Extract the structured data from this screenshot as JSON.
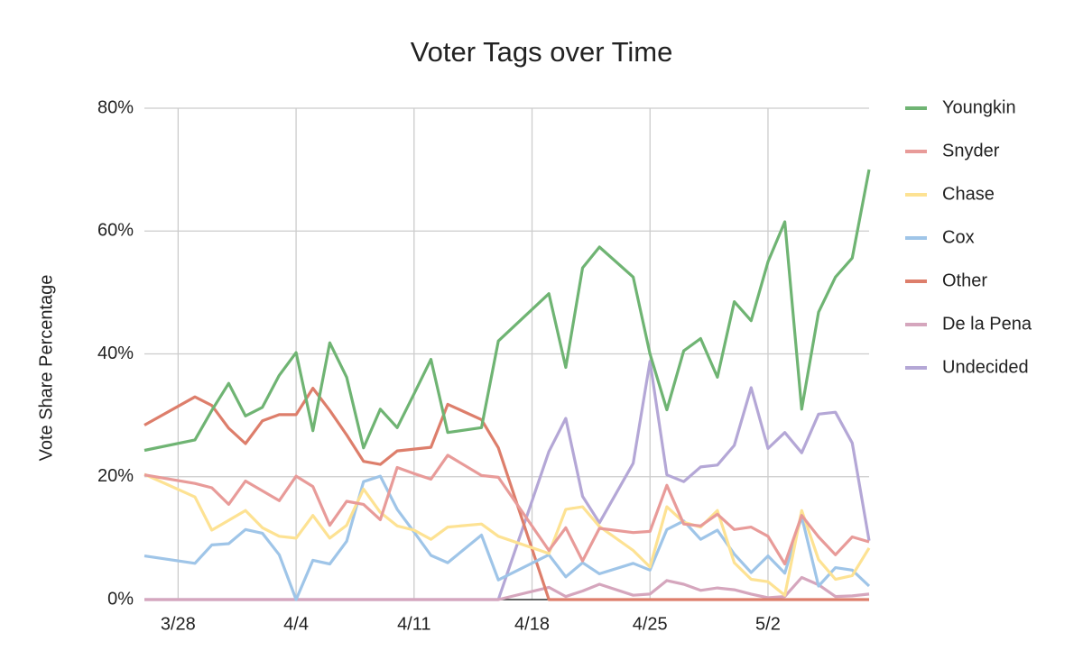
{
  "chart_data": {
    "type": "line",
    "title": "Voter Tags over Time",
    "y_label": "Vote Share Percentage",
    "x": [
      0,
      3,
      4,
      5,
      6,
      7,
      8,
      9,
      10,
      11,
      12,
      13,
      14,
      15,
      16,
      17,
      18,
      20,
      21,
      24,
      25,
      26,
      27,
      29,
      30,
      31,
      32,
      33,
      34,
      35,
      36,
      37,
      38,
      39,
      40,
      41,
      42,
      43
    ],
    "xlim": [
      0,
      43
    ],
    "xticks": [
      {
        "value": 2,
        "label": "3/28"
      },
      {
        "value": 9,
        "label": "4/4"
      },
      {
        "value": 16,
        "label": "4/11"
      },
      {
        "value": 23,
        "label": "4/18"
      },
      {
        "value": 30,
        "label": "4/25"
      },
      {
        "value": 37,
        "label": "5/2"
      }
    ],
    "ylim": [
      0,
      80
    ],
    "yticks": [
      {
        "value": 0,
        "label": "0%"
      },
      {
        "value": 20,
        "label": "20%"
      },
      {
        "value": 40,
        "label": "40%"
      },
      {
        "value": 60,
        "label": "60%"
      },
      {
        "value": 80,
        "label": "80%"
      }
    ],
    "grid": true,
    "legend": "right",
    "series": [
      {
        "name": "Youngkin",
        "color": "#6fb473",
        "values": [
          24.3,
          26,
          30.8,
          35.2,
          29.9,
          31.3,
          36.5,
          40.2,
          27.5,
          41.8,
          36.2,
          24.7,
          31,
          28,
          33.5,
          39.1,
          27.2,
          28,
          42.1,
          49.8,
          37.8,
          54,
          57.4,
          52.5,
          40,
          30.9,
          40.5,
          42.5,
          36.2,
          48.5,
          45.4,
          55,
          61.5,
          31,
          46.8,
          52.5,
          55.6,
          70
        ]
      },
      {
        "name": "Snyder",
        "color": "#e89b99",
        "values": [
          20.3,
          18.9,
          18.2,
          15.5,
          19.3,
          17.7,
          16.1,
          20.1,
          18.4,
          12.1,
          16,
          15.5,
          13,
          21.5,
          20.5,
          19.6,
          23.5,
          20.2,
          19.9,
          8,
          11.7,
          6.3,
          11.6,
          10.9,
          11.1,
          18.6,
          12.3,
          12,
          13.9,
          11.4,
          11.8,
          10.3,
          5.8,
          13.7,
          10.2,
          7.3,
          10.2,
          9.4
        ]
      },
      {
        "name": "Chase",
        "color": "#fde293",
        "values": [
          20.4,
          16.7,
          11.3,
          12.9,
          14.5,
          11.7,
          10.3,
          10,
          13.7,
          10,
          12.1,
          18,
          14.2,
          12,
          11.3,
          9.8,
          11.8,
          12.3,
          10.3,
          7.5,
          14.7,
          15.1,
          11.9,
          8,
          5.3,
          15.1,
          12.6,
          11.8,
          14.5,
          6,
          3.3,
          2.9,
          0.7,
          14.5,
          6.5,
          3.3,
          3.9,
          8.4
        ]
      },
      {
        "name": "Cox",
        "color": "#9fc5e8",
        "values": [
          7.1,
          5.9,
          8.9,
          9.1,
          11.4,
          10.8,
          7.3,
          0,
          6.4,
          5.8,
          9.5,
          19.2,
          20.1,
          14.7,
          11,
          7.2,
          6,
          10.5,
          3.2,
          7.3,
          3.7,
          6,
          4.2,
          5.9,
          4.8,
          11.4,
          12.8,
          9.8,
          11.3,
          7.4,
          4.4,
          7.1,
          4.3,
          13.5,
          2.2,
          5.2,
          4.8,
          2.2
        ]
      },
      {
        "name": "Other",
        "color": "#dd7e6b",
        "values": [
          28.4,
          33,
          31.6,
          27.9,
          25.4,
          29.1,
          30.1,
          30.1,
          34.4,
          30.8,
          26.8,
          22.5,
          22,
          24.2,
          24.5,
          24.8,
          31.8,
          29.3,
          24.7,
          0,
          0,
          0,
          0,
          0,
          0,
          0,
          0,
          0,
          0,
          0,
          0,
          0,
          0,
          0,
          0,
          0,
          0,
          0
        ]
      },
      {
        "name": "De la Pena",
        "color": "#d5a6bd",
        "values": [
          0,
          0,
          0,
          0,
          0,
          0,
          0,
          0,
          0,
          0,
          0,
          0,
          0,
          0,
          0,
          0,
          0,
          0,
          0,
          2,
          0.5,
          1.4,
          2.5,
          0.7,
          0.9,
          3.1,
          2.5,
          1.5,
          1.9,
          1.6,
          0.9,
          0.3,
          0.5,
          3.6,
          2.4,
          0.5,
          0.6,
          0.9
        ]
      },
      {
        "name": "Undecided",
        "color": "#b4a7d6",
        "values": [
          0,
          0,
          0,
          0,
          0,
          0,
          0,
          0,
          0,
          0,
          0,
          0,
          0,
          0,
          0,
          0,
          0,
          0,
          0,
          24.1,
          29.5,
          16.8,
          12.5,
          22.2,
          38.8,
          20.3,
          19.2,
          21.6,
          21.9,
          25.1,
          34.5,
          24.6,
          27.2,
          23.9,
          30.2,
          30.5,
          25.5,
          9.6
        ]
      }
    ]
  }
}
